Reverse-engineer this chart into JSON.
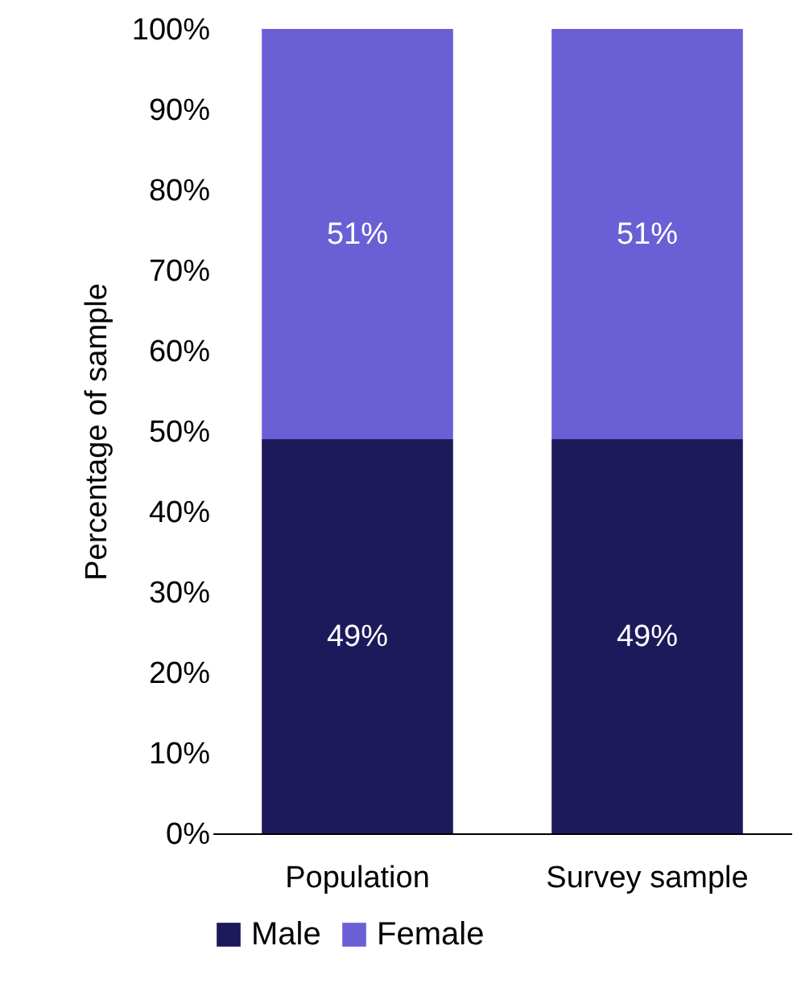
{
  "chart_data": {
    "type": "bar",
    "stacked": true,
    "ylabel": "Percentage of sample",
    "categories": [
      "Population",
      "Survey sample"
    ],
    "series": [
      {
        "name": "Male",
        "color": "#1c1a5a",
        "values": [
          49,
          49
        ],
        "value_labels": [
          "49%",
          "49%"
        ]
      },
      {
        "name": "Female",
        "color": "#6a5fd5",
        "values": [
          51,
          51
        ],
        "value_labels": [
          "51%",
          "51%"
        ]
      }
    ],
    "ylim": [
      0,
      100
    ],
    "yticks": [
      {
        "value": 0,
        "label": "0%"
      },
      {
        "value": 10,
        "label": "10%"
      },
      {
        "value": 20,
        "label": "20%"
      },
      {
        "value": 30,
        "label": "30%"
      },
      {
        "value": 40,
        "label": "40%"
      },
      {
        "value": 50,
        "label": "50%"
      },
      {
        "value": 60,
        "label": "60%"
      },
      {
        "value": 70,
        "label": "70%"
      },
      {
        "value": 80,
        "label": "80%"
      },
      {
        "value": 90,
        "label": "90%"
      },
      {
        "value": 100,
        "label": "100%"
      }
    ],
    "grid": false,
    "legend": "bottom"
  }
}
